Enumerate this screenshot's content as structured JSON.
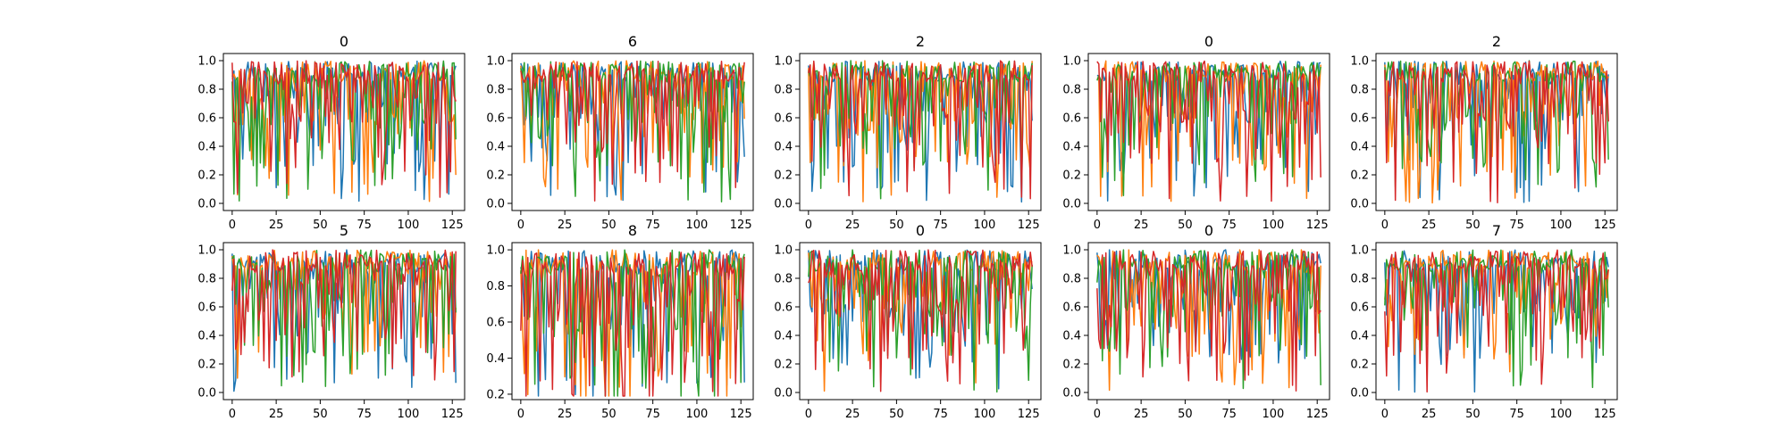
{
  "chart_data": [
    {
      "type": "line",
      "title": "0",
      "xlim": [
        -5,
        132
      ],
      "ylim": [
        -0.05,
        1.05
      ],
      "xticks": [
        0,
        25,
        50,
        75,
        100,
        125
      ],
      "yticks": [
        0.0,
        0.2,
        0.4,
        0.6,
        0.8,
        1.0
      ],
      "ytick_labels": [
        "0.0",
        "0.2",
        "0.4",
        "0.6",
        "0.8",
        "1.0"
      ],
      "n_points": 128,
      "seed": 11
    },
    {
      "type": "line",
      "title": "6",
      "xlim": [
        -5,
        132
      ],
      "ylim": [
        -0.05,
        1.05
      ],
      "xticks": [
        0,
        25,
        50,
        75,
        100,
        125
      ],
      "yticks": [
        0.0,
        0.2,
        0.4,
        0.6,
        0.8,
        1.0
      ],
      "ytick_labels": [
        "0.0",
        "0.2",
        "0.4",
        "0.6",
        "0.8",
        "1.0"
      ],
      "n_points": 128,
      "seed": 23
    },
    {
      "type": "line",
      "title": "2",
      "xlim": [
        -5,
        132
      ],
      "ylim": [
        -0.05,
        1.05
      ],
      "xticks": [
        0,
        25,
        50,
        75,
        100,
        125
      ],
      "yticks": [
        0.0,
        0.2,
        0.4,
        0.6,
        0.8,
        1.0
      ],
      "ytick_labels": [
        "0.0",
        "0.2",
        "0.4",
        "0.6",
        "0.8",
        "1.0"
      ],
      "n_points": 128,
      "seed": 37
    },
    {
      "type": "line",
      "title": "0",
      "xlim": [
        -5,
        132
      ],
      "ylim": [
        -0.05,
        1.05
      ],
      "xticks": [
        0,
        25,
        50,
        75,
        100,
        125
      ],
      "yticks": [
        0.0,
        0.2,
        0.4,
        0.6,
        0.8,
        1.0
      ],
      "ytick_labels": [
        "0.0",
        "0.2",
        "0.4",
        "0.6",
        "0.8",
        "1.0"
      ],
      "n_points": 128,
      "seed": 41
    },
    {
      "type": "line",
      "title": "2",
      "xlim": [
        -5,
        132
      ],
      "ylim": [
        -0.05,
        1.05
      ],
      "xticks": [
        0,
        25,
        50,
        75,
        100,
        125
      ],
      "yticks": [
        0.0,
        0.2,
        0.4,
        0.6,
        0.8,
        1.0
      ],
      "ytick_labels": [
        "0.0",
        "0.2",
        "0.4",
        "0.6",
        "0.8",
        "1.0"
      ],
      "n_points": 128,
      "seed": 53
    },
    {
      "type": "line",
      "title": "5",
      "xlim": [
        -5,
        132
      ],
      "ylim": [
        -0.05,
        1.05
      ],
      "xticks": [
        0,
        25,
        50,
        75,
        100,
        125
      ],
      "yticks": [
        0.0,
        0.2,
        0.4,
        0.6,
        0.8,
        1.0
      ],
      "ytick_labels": [
        "0.0",
        "0.2",
        "0.4",
        "0.6",
        "0.8",
        "1.0"
      ],
      "n_points": 128,
      "seed": 67
    },
    {
      "type": "line",
      "title": "8",
      "xlim": [
        -5,
        132
      ],
      "ylim": [
        0.17,
        1.04
      ],
      "xticks": [
        0,
        25,
        50,
        75,
        100,
        125
      ],
      "yticks": [
        0.2,
        0.4,
        0.6,
        0.8,
        1.0
      ],
      "ytick_labels": [
        "0.2",
        "0.4",
        "0.6",
        "0.8",
        "1.0"
      ],
      "n_points": 128,
      "seed": 71
    },
    {
      "type": "line",
      "title": "0",
      "xlim": [
        -5,
        132
      ],
      "ylim": [
        -0.05,
        1.05
      ],
      "xticks": [
        0,
        25,
        50,
        75,
        100,
        125
      ],
      "yticks": [
        0.0,
        0.2,
        0.4,
        0.6,
        0.8,
        1.0
      ],
      "ytick_labels": [
        "0.0",
        "0.2",
        "0.4",
        "0.6",
        "0.8",
        "1.0"
      ],
      "n_points": 128,
      "seed": 83
    },
    {
      "type": "line",
      "title": "0",
      "xlim": [
        -5,
        132
      ],
      "ylim": [
        -0.05,
        1.05
      ],
      "xticks": [
        0,
        25,
        50,
        75,
        100,
        125
      ],
      "yticks": [
        0.0,
        0.2,
        0.4,
        0.6,
        0.8,
        1.0
      ],
      "ytick_labels": [
        "0.0",
        "0.2",
        "0.4",
        "0.6",
        "0.8",
        "1.0"
      ],
      "n_points": 128,
      "seed": 97
    },
    {
      "type": "line",
      "title": "7",
      "xlim": [
        -5,
        132
      ],
      "ylim": [
        -0.05,
        1.05
      ],
      "xticks": [
        0,
        25,
        50,
        75,
        100,
        125
      ],
      "yticks": [
        0.0,
        0.2,
        0.4,
        0.6,
        0.8,
        1.0
      ],
      "ytick_labels": [
        "0.0",
        "0.2",
        "0.4",
        "0.6",
        "0.8",
        "1.0"
      ],
      "n_points": 128,
      "seed": 101
    }
  ],
  "series_colors": [
    "#1f77b4",
    "#ff7f0e",
    "#2ca02c",
    "#d62728"
  ]
}
